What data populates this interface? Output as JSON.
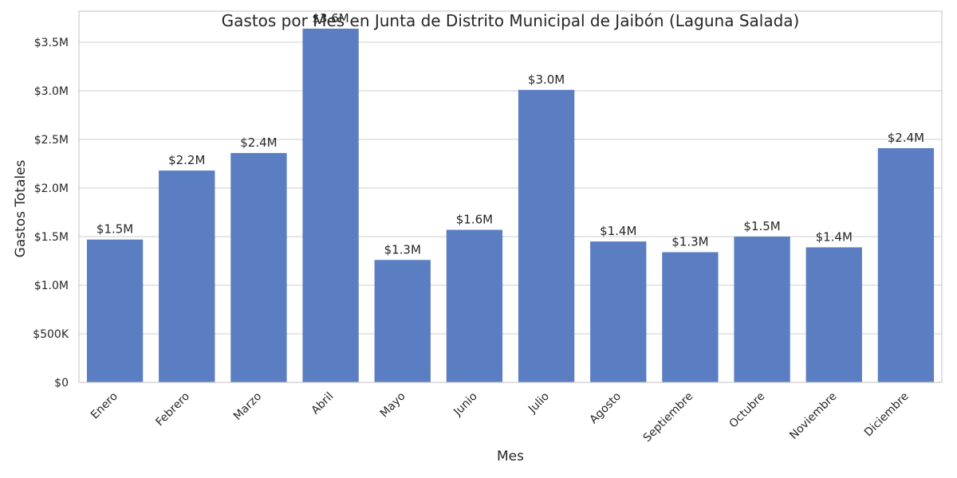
{
  "chart_data": {
    "type": "bar",
    "title": "Gastos por Mes en Junta de Distrito Municipal de Jaibón (Laguna Salada)",
    "xlabel": "Mes",
    "ylabel": "Gastos Totales",
    "categories": [
      "Enero",
      "Febrero",
      "Marzo",
      "Abril",
      "Mayo",
      "Junio",
      "Julio",
      "Agosto",
      "Septiembre",
      "Octubre",
      "Noviembre",
      "Diciembre"
    ],
    "values": [
      1470000,
      2180000,
      2360000,
      3640000,
      1260000,
      1570000,
      3010000,
      1450000,
      1340000,
      1500000,
      1390000,
      2410000
    ],
    "value_labels": [
      "$1.5M",
      "$2.2M",
      "$2.4M",
      "$3.6M",
      "$1.3M",
      "$1.6M",
      "$3.0M",
      "$1.4M",
      "$1.3M",
      "$1.5M",
      "$1.4M",
      "$2.4M"
    ],
    "ylim": [
      0,
      3820000
    ],
    "yticks": [
      0,
      500000,
      1000000,
      1500000,
      2000000,
      2500000,
      3000000,
      3500000
    ],
    "ytick_labels": [
      "$0",
      "$500K",
      "$1.0M",
      "$1.5M",
      "$2.0M",
      "$2.5M",
      "$3.0M",
      "$3.5M"
    ],
    "grid": "horizontal",
    "bar_color": "#5b7ec2",
    "grid_color": "#cccccc"
  }
}
